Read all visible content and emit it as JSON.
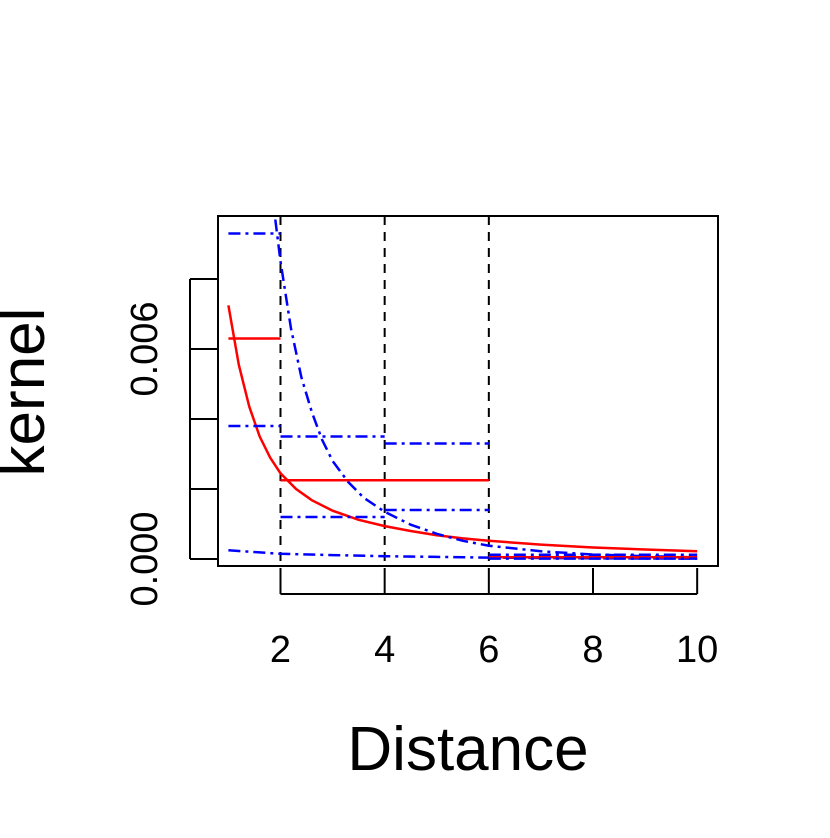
{
  "chart_data": {
    "type": "line",
    "title": "",
    "xlabel": "Distance",
    "ylabel": "kernel",
    "xlim": [
      0.8,
      10.4
    ],
    "ylim": [
      -0.0002,
      0.0098
    ],
    "x_ticks": [
      2,
      4,
      6,
      8,
      10
    ],
    "x_tick_labels": [
      "2",
      "4",
      "6",
      "8",
      "10"
    ],
    "y_ticks": [
      0.0,
      0.002,
      0.004,
      0.006,
      0.008
    ],
    "y_tick_labels": [
      "0.000",
      "",
      "",
      "0.006",
      ""
    ],
    "grid": false,
    "legend": "none",
    "vertical_reference_lines": {
      "x": [
        2,
        4,
        6
      ],
      "style": "dashed",
      "color": "#000000"
    },
    "series": [
      {
        "kind": "curve",
        "color": "#ff0000",
        "style": "solid",
        "x": [
          1.0,
          1.2,
          1.4,
          1.6,
          1.8,
          2.0,
          2.3,
          2.6,
          3.0,
          3.5,
          4.0,
          4.5,
          5.0,
          5.5,
          6.0,
          7.0,
          8.0,
          9.0,
          10.0
        ],
        "y": [
          0.00725,
          0.00555,
          0.00435,
          0.0035,
          0.0029,
          0.00245,
          0.002,
          0.00168,
          0.00138,
          0.00112,
          0.00094,
          0.0008,
          0.00068,
          0.00059,
          0.00052,
          0.00041,
          0.00033,
          0.00027,
          0.00022
        ]
      },
      {
        "kind": "curve",
        "color": "#0000ff",
        "style": "dashdot",
        "x": [
          1.9,
          2.0,
          2.2,
          2.4,
          2.6,
          2.8,
          3.0,
          3.3,
          3.6,
          4.0,
          4.5,
          5.0,
          5.5,
          6.0,
          7.0,
          8.0,
          9.0,
          10.0
        ],
        "y": [
          0.0097,
          0.0085,
          0.0066,
          0.0052,
          0.0042,
          0.0034,
          0.0028,
          0.0022,
          0.00175,
          0.00135,
          0.00098,
          0.00072,
          0.00052,
          0.00038,
          0.00022,
          0.00013,
          8e-05,
          5e-05
        ]
      },
      {
        "kind": "curve",
        "color": "#0000ff",
        "style": "dashdot",
        "x": [
          1.0,
          2.0,
          3.0,
          4.0,
          5.0,
          6.0,
          7.0,
          8.0,
          9.0,
          10.0
        ],
        "y": [
          0.00025,
          0.00015,
          0.00011,
          8e-05,
          6e-05,
          4e-05,
          3e-05,
          2e-05,
          1.5e-05,
          1e-05
        ]
      },
      {
        "kind": "step",
        "color": "#ff0000",
        "style": "solid",
        "segments": [
          {
            "x0": 1,
            "x1": 2,
            "y": 0.0063
          },
          {
            "x0": 2,
            "x1": 6,
            "y": 0.00225
          },
          {
            "x0": 6,
            "x1": 10,
            "y": 5e-05
          }
        ]
      },
      {
        "kind": "step",
        "color": "#0000ff",
        "style": "dashdot",
        "segments": [
          {
            "x0": 1,
            "x1": 2,
            "y": 0.0093
          },
          {
            "x0": 2,
            "x1": 4,
            "y": 0.0035
          },
          {
            "x0": 4,
            "x1": 6,
            "y": 0.0033
          },
          {
            "x0": 6,
            "x1": 10,
            "y": 0.00012
          }
        ]
      },
      {
        "kind": "step",
        "color": "#0000ff",
        "style": "dashdot",
        "segments": [
          {
            "x0": 1,
            "x1": 2,
            "y": 0.0038
          },
          {
            "x0": 2,
            "x1": 4,
            "y": 0.0012
          },
          {
            "x0": 4,
            "x1": 6,
            "y": 0.0014
          },
          {
            "x0": 6,
            "x1": 10,
            "y": 1e-05
          }
        ]
      }
    ]
  }
}
